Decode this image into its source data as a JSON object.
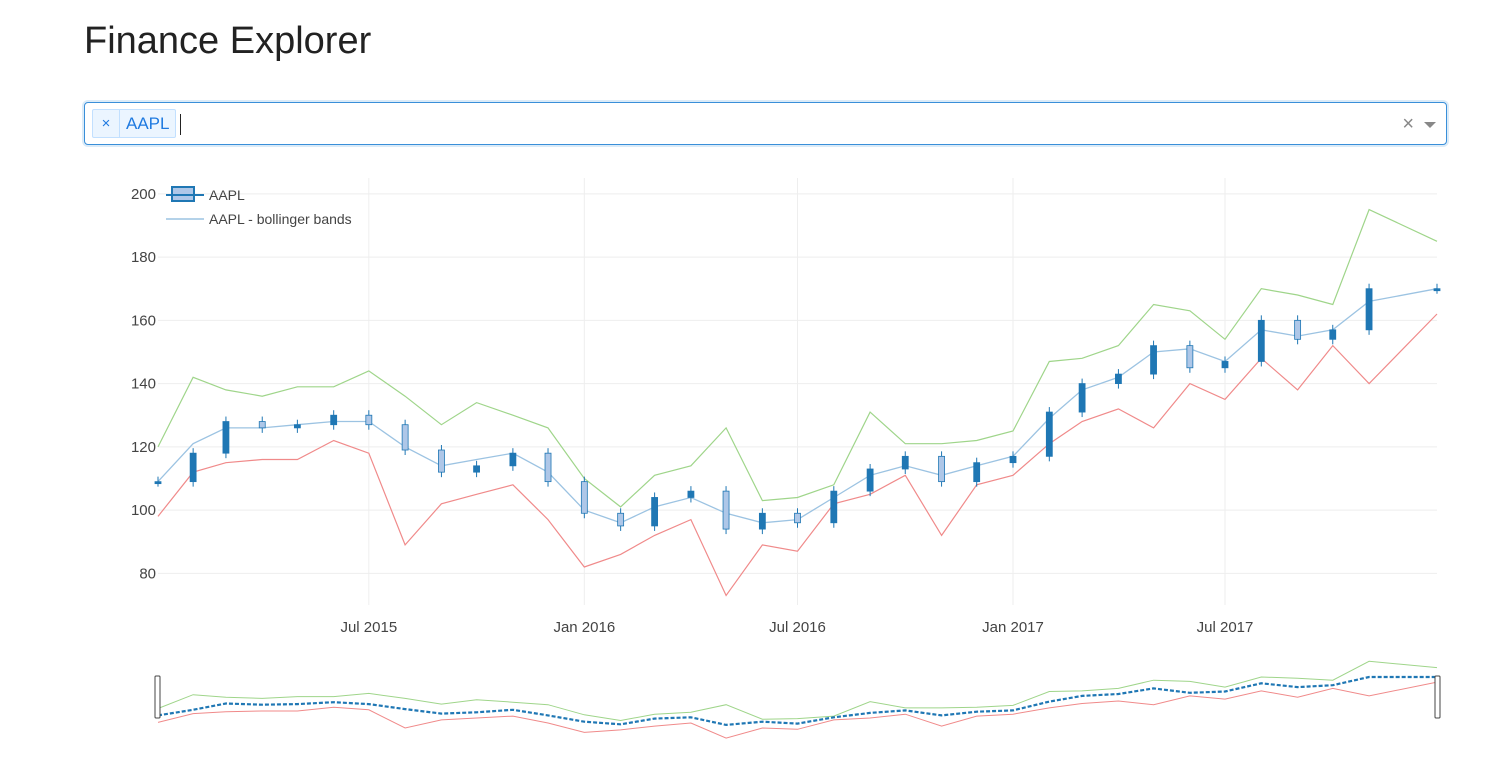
{
  "page": {
    "title": "Finance Explorer"
  },
  "search": {
    "selected_tags": [
      {
        "label": "AAPL",
        "remove_glyph": "×"
      }
    ],
    "clear_glyph": "×",
    "icons": {
      "clear": "clear-x-icon",
      "dropdown": "chevron-down-icon"
    },
    "accent_color": "#3a8fd9"
  },
  "chart_data": {
    "type": "line",
    "subtype": "candlestick-with-bollinger-bands",
    "title": "",
    "xlabel": "",
    "ylabel": "",
    "x_ticks": [
      "Jul 2015",
      "Jan 2016",
      "Jul 2016",
      "Jan 2017",
      "Jul 2017"
    ],
    "y_ticks": [
      80,
      100,
      120,
      140,
      160,
      180,
      200
    ],
    "xlim": [
      "2015-01-02",
      "2017-12-29"
    ],
    "ylim": [
      70,
      205
    ],
    "grid": true,
    "legend": {
      "position": "top-left",
      "entries": [
        "AAPL",
        "AAPL - bollinger bands"
      ]
    },
    "colors": {
      "candle_increasing": "#1f77b4",
      "candle_decreasing": "#aec7e8",
      "band_upper": "#9fd58a",
      "band_lower": "#f08a8a",
      "band_middle": "#9cc3e2"
    },
    "series": [
      {
        "name": "AAPL",
        "kind": "close",
        "x": [
          "2015-01-02",
          "2015-02-01",
          "2015-03-01",
          "2015-04-01",
          "2015-05-01",
          "2015-06-01",
          "2015-07-01",
          "2015-08-01",
          "2015-09-01",
          "2015-10-01",
          "2015-11-01",
          "2015-12-01",
          "2016-01-01",
          "2016-02-01",
          "2016-03-01",
          "2016-04-01",
          "2016-05-01",
          "2016-06-01",
          "2016-07-01",
          "2016-08-01",
          "2016-09-01",
          "2016-10-01",
          "2016-11-01",
          "2016-12-01",
          "2017-01-01",
          "2017-02-01",
          "2017-03-01",
          "2017-04-01",
          "2017-05-01",
          "2017-06-01",
          "2017-07-01",
          "2017-08-01",
          "2017-09-01",
          "2017-10-01",
          "2017-11-01",
          "2017-12-29"
        ],
        "values": [
          109,
          118,
          128,
          126,
          127,
          130,
          127,
          119,
          112,
          114,
          118,
          109,
          99,
          95,
          104,
          106,
          94,
          99,
          96,
          106,
          113,
          117,
          109,
          115,
          117,
          131,
          140,
          143,
          152,
          145,
          147,
          160,
          154,
          157,
          170,
          170
        ]
      },
      {
        "name": "upper",
        "kind": "bollinger-upper",
        "x": [
          "2015-01-02",
          "2015-02-01",
          "2015-03-01",
          "2015-04-01",
          "2015-05-01",
          "2015-06-01",
          "2015-07-01",
          "2015-08-01",
          "2015-09-01",
          "2015-10-01",
          "2015-11-01",
          "2015-12-01",
          "2016-01-01",
          "2016-02-01",
          "2016-03-01",
          "2016-04-01",
          "2016-05-01",
          "2016-06-01",
          "2016-07-01",
          "2016-08-01",
          "2016-09-01",
          "2016-10-01",
          "2016-11-01",
          "2016-12-01",
          "2017-01-01",
          "2017-02-01",
          "2017-03-01",
          "2017-04-01",
          "2017-05-01",
          "2017-06-01",
          "2017-07-01",
          "2017-08-01",
          "2017-09-01",
          "2017-10-01",
          "2017-11-01",
          "2017-12-29"
        ],
        "values": [
          120,
          142,
          138,
          136,
          139,
          139,
          144,
          136,
          127,
          134,
          130,
          126,
          110,
          101,
          111,
          114,
          126,
          103,
          104,
          108,
          131,
          121,
          121,
          122,
          125,
          147,
          148,
          152,
          165,
          163,
          154,
          170,
          168,
          165,
          195,
          185
        ]
      },
      {
        "name": "lower",
        "kind": "bollinger-lower",
        "x": [
          "2015-01-02",
          "2015-02-01",
          "2015-03-01",
          "2015-04-01",
          "2015-05-01",
          "2015-06-01",
          "2015-07-01",
          "2015-08-01",
          "2015-09-01",
          "2015-10-01",
          "2015-11-01",
          "2015-12-01",
          "2016-01-01",
          "2016-02-01",
          "2016-03-01",
          "2016-04-01",
          "2016-05-01",
          "2016-06-01",
          "2016-07-01",
          "2016-08-01",
          "2016-09-01",
          "2016-10-01",
          "2016-11-01",
          "2016-12-01",
          "2017-01-01",
          "2017-02-01",
          "2017-03-01",
          "2017-04-01",
          "2017-05-01",
          "2017-06-01",
          "2017-07-01",
          "2017-08-01",
          "2017-09-01",
          "2017-10-01",
          "2017-11-01",
          "2017-12-29"
        ],
        "values": [
          98,
          112,
          115,
          116,
          116,
          122,
          118,
          89,
          102,
          105,
          108,
          97,
          82,
          86,
          92,
          97,
          73,
          89,
          87,
          102,
          105,
          111,
          92,
          108,
          111,
          121,
          128,
          132,
          126,
          140,
          135,
          148,
          138,
          152,
          140,
          162
        ]
      },
      {
        "name": "middle",
        "kind": "bollinger-middle",
        "x": [
          "2015-01-02",
          "2015-02-01",
          "2015-03-01",
          "2015-04-01",
          "2015-05-01",
          "2015-06-01",
          "2015-07-01",
          "2015-08-01",
          "2015-09-01",
          "2015-10-01",
          "2015-11-01",
          "2015-12-01",
          "2016-01-01",
          "2016-02-01",
          "2016-03-01",
          "2016-04-01",
          "2016-05-01",
          "2016-06-01",
          "2016-07-01",
          "2016-08-01",
          "2016-09-01",
          "2016-10-01",
          "2016-11-01",
          "2016-12-01",
          "2017-01-01",
          "2017-02-01",
          "2017-03-01",
          "2017-04-01",
          "2017-05-01",
          "2017-06-01",
          "2017-07-01",
          "2017-08-01",
          "2017-09-01",
          "2017-10-01",
          "2017-11-01",
          "2017-12-29"
        ],
        "values": [
          109,
          121,
          126,
          126,
          127,
          128,
          128,
          120,
          114,
          116,
          118,
          112,
          100,
          96,
          101,
          104,
          99,
          96,
          97,
          104,
          111,
          114,
          111,
          114,
          117,
          129,
          138,
          142,
          150,
          151,
          147,
          157,
          155,
          157,
          166,
          170
        ]
      }
    ]
  }
}
